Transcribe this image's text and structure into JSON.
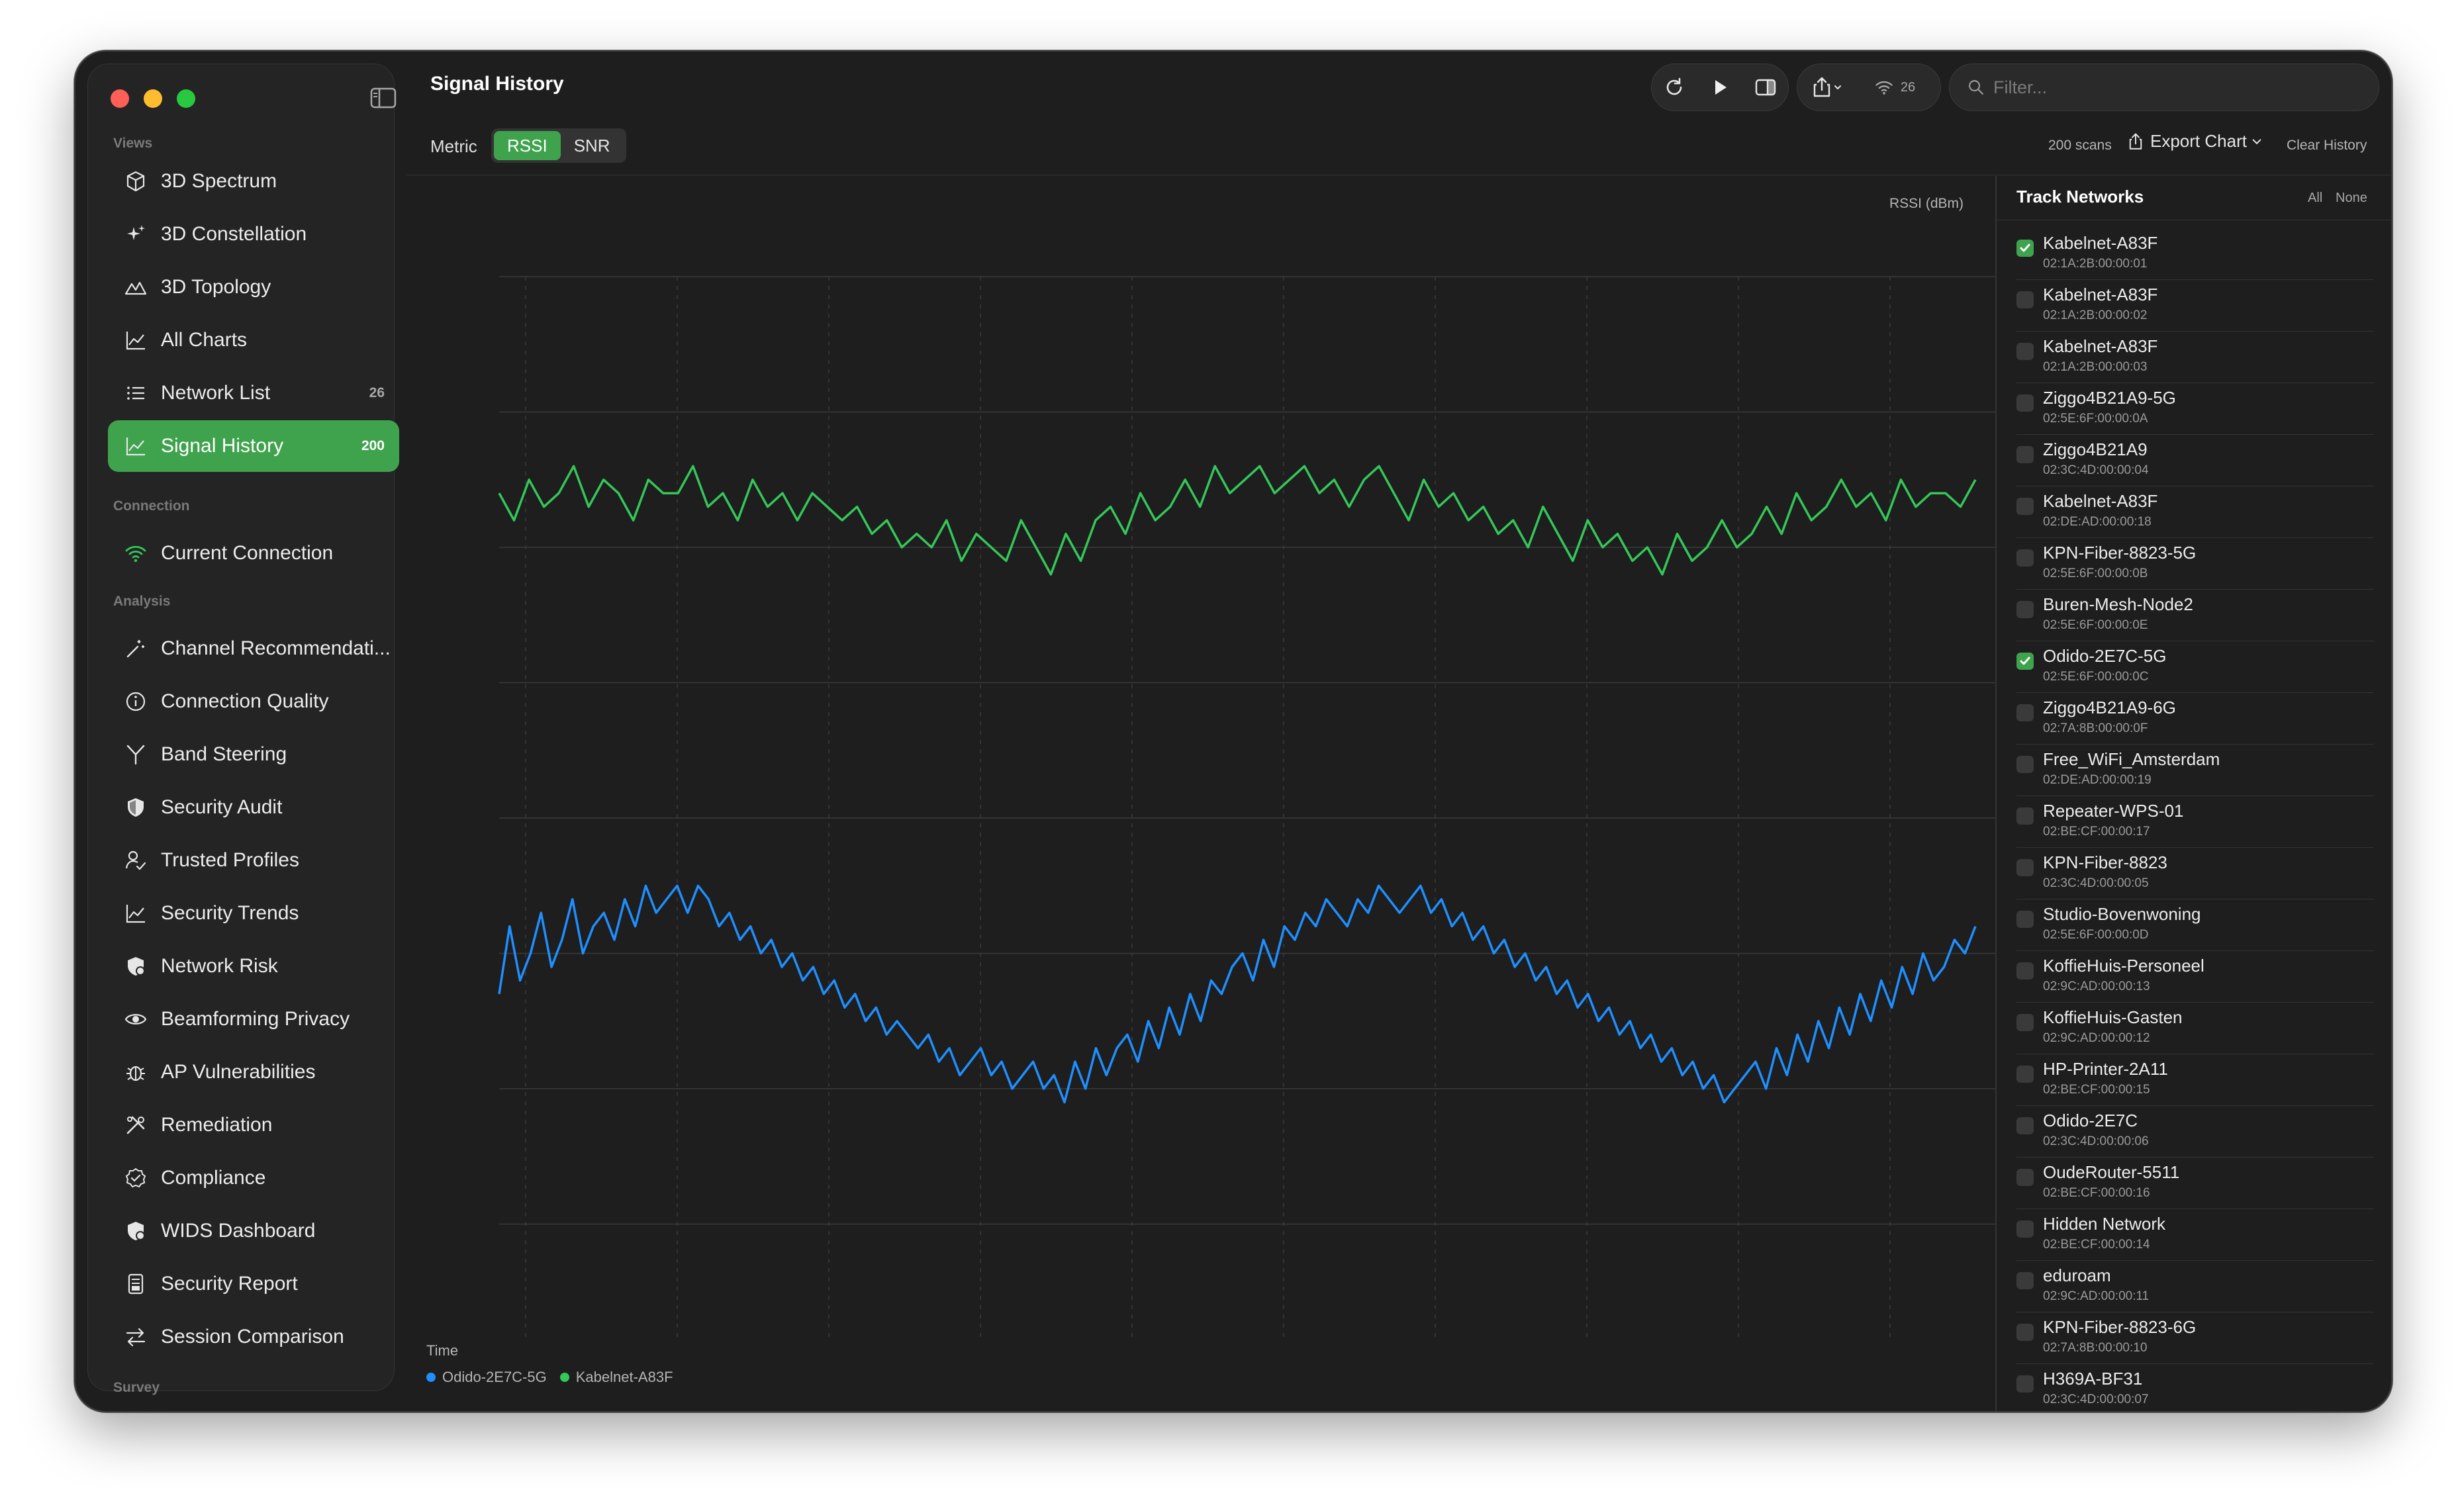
{
  "window": {
    "title": "Signal History"
  },
  "sidebar": {
    "sections": [
      {
        "label": "Views",
        "items": [
          {
            "label": "3D Spectrum",
            "icon": "cube-icon"
          },
          {
            "label": "3D Constellation",
            "icon": "sparkles-icon"
          },
          {
            "label": "3D Topology",
            "icon": "mountains-icon"
          },
          {
            "label": "All Charts",
            "icon": "line-chart-icon"
          },
          {
            "label": "Network List",
            "icon": "list-icon",
            "count": "26"
          },
          {
            "label": "Signal History",
            "icon": "line-chart-icon",
            "count": "200",
            "active": true
          }
        ]
      },
      {
        "label": "Connection",
        "items": [
          {
            "label": "Current Connection",
            "icon": "wifi-icon"
          }
        ]
      },
      {
        "label": "Analysis",
        "items": [
          {
            "label": "Channel Recommendati...",
            "icon": "wand-icon"
          },
          {
            "label": "Connection Quality",
            "icon": "info-circle-icon"
          },
          {
            "label": "Band Steering",
            "icon": "fork-icon"
          },
          {
            "label": "Security Audit",
            "icon": "shield-icon"
          },
          {
            "label": "Trusted Profiles",
            "icon": "person-check-icon"
          },
          {
            "label": "Security Trends",
            "icon": "line-chart-icon"
          },
          {
            "label": "Network Risk",
            "icon": "shield-alert-icon"
          },
          {
            "label": "Beamforming Privacy",
            "icon": "eye-icon"
          },
          {
            "label": "AP Vulnerabilities",
            "icon": "bug-icon"
          },
          {
            "label": "Remediation",
            "icon": "tools-icon"
          },
          {
            "label": "Compliance",
            "icon": "checkmark-seal-icon"
          },
          {
            "label": "WIDS Dashboard",
            "icon": "shield-alert-icon"
          },
          {
            "label": "Security Report",
            "icon": "document-icon"
          },
          {
            "label": "Session Comparison",
            "icon": "arrows-swap-icon"
          }
        ]
      },
      {
        "label": "Survey",
        "items": []
      }
    ]
  },
  "toolbar": {
    "wifi_count": "26",
    "search_placeholder": "Filter..."
  },
  "controls": {
    "metric_label": "Metric",
    "metric_options": [
      "RSSI",
      "SNR"
    ],
    "metric_selected": "RSSI",
    "scans": "200 scans",
    "export_label": "Export Chart",
    "clear_label": "Clear History"
  },
  "chart_data": {
    "type": "line",
    "ylabel": "RSSI (dBm)",
    "xlabel": "Time",
    "ylim": [
      -100,
      -20
    ],
    "yticks": [
      -20,
      -30,
      -40,
      -50,
      -60,
      -70,
      -80,
      -90,
      -100
    ],
    "xticks": [
      "17:54:00",
      "17:55:00",
      "17:56:00",
      "17:57:00",
      "17:58:00",
      "17:59:00",
      "18:00:00",
      "18:01:00",
      "18:02:00",
      "18:03:..."
    ],
    "grid": true,
    "series": [
      {
        "name": "Odido-2E7C-5G",
        "color": "#1f8fff",
        "values": [
          -73,
          -68,
          -72,
          -70,
          -67,
          -71,
          -69,
          -66,
          -70,
          -68,
          -67,
          -69,
          -66,
          -68,
          -65,
          -67,
          -66,
          -65,
          -67,
          -65,
          -66,
          -68,
          -67,
          -69,
          -68,
          -70,
          -69,
          -71,
          -70,
          -72,
          -71,
          -73,
          -72,
          -74,
          -73,
          -75,
          -74,
          -76,
          -75,
          -76,
          -77,
          -76,
          -78,
          -77,
          -79,
          -78,
          -77,
          -79,
          -78,
          -80,
          -79,
          -78,
          -80,
          -79,
          -81,
          -78,
          -80,
          -77,
          -79,
          -77,
          -76,
          -78,
          -75,
          -77,
          -74,
          -76,
          -73,
          -75,
          -72,
          -73,
          -71,
          -70,
          -72,
          -69,
          -71,
          -68,
          -69,
          -67,
          -68,
          -66,
          -67,
          -68,
          -66,
          -67,
          -65,
          -66,
          -67,
          -66,
          -65,
          -67,
          -66,
          -68,
          -67,
          -69,
          -68,
          -70,
          -69,
          -71,
          -70,
          -72,
          -71,
          -73,
          -72,
          -74,
          -73,
          -75,
          -74,
          -76,
          -75,
          -77,
          -76,
          -78,
          -77,
          -79,
          -78,
          -80,
          -79,
          -81,
          -80,
          -79,
          -78,
          -80,
          -77,
          -79,
          -76,
          -78,
          -75,
          -77,
          -74,
          -76,
          -73,
          -75,
          -72,
          -74,
          -71,
          -73,
          -70,
          -72,
          -71,
          -69,
          -70,
          -68
        ]
      },
      {
        "name": "Kabelnet-A83F",
        "color": "#34c759",
        "values": [
          -36,
          -38,
          -35,
          -37,
          -36,
          -34,
          -37,
          -35,
          -36,
          -38,
          -35,
          -36,
          -36,
          -34,
          -37,
          -36,
          -38,
          -35,
          -37,
          -36,
          -38,
          -36,
          -37,
          -38,
          -37,
          -39,
          -38,
          -40,
          -39,
          -40,
          -38,
          -41,
          -39,
          -40,
          -41,
          -38,
          -40,
          -42,
          -39,
          -41,
          -38,
          -37,
          -39,
          -36,
          -38,
          -37,
          -35,
          -37,
          -34,
          -36,
          -35,
          -34,
          -36,
          -35,
          -34,
          -36,
          -35,
          -37,
          -35,
          -34,
          -36,
          -38,
          -35,
          -37,
          -36,
          -38,
          -37,
          -39,
          -38,
          -40,
          -37,
          -39,
          -41,
          -38,
          -40,
          -39,
          -41,
          -40,
          -42,
          -39,
          -41,
          -40,
          -38,
          -40,
          -39,
          -37,
          -39,
          -36,
          -38,
          -37,
          -35,
          -37,
          -36,
          -38,
          -35,
          -37,
          -36,
          -36,
          -37,
          -35
        ]
      }
    ]
  },
  "track_networks": {
    "title": "Track Networks",
    "all_label": "All",
    "none_label": "None",
    "items": [
      {
        "name": "Kabelnet-A83F",
        "mac": "02:1A:2B:00:00:01",
        "checked": true
      },
      {
        "name": "Kabelnet-A83F",
        "mac": "02:1A:2B:00:00:02",
        "checked": false
      },
      {
        "name": "Kabelnet-A83F",
        "mac": "02:1A:2B:00:00:03",
        "checked": false
      },
      {
        "name": "Ziggo4B21A9-5G",
        "mac": "02:5E:6F:00:00:0A",
        "checked": false
      },
      {
        "name": "Ziggo4B21A9",
        "mac": "02:3C:4D:00:00:04",
        "checked": false
      },
      {
        "name": "Kabelnet-A83F",
        "mac": "02:DE:AD:00:00:18",
        "checked": false
      },
      {
        "name": "KPN-Fiber-8823-5G",
        "mac": "02:5E:6F:00:00:0B",
        "checked": false
      },
      {
        "name": "Buren-Mesh-Node2",
        "mac": "02:5E:6F:00:00:0E",
        "checked": false
      },
      {
        "name": "Odido-2E7C-5G",
        "mac": "02:5E:6F:00:00:0C",
        "checked": true
      },
      {
        "name": "Ziggo4B21A9-6G",
        "mac": "02:7A:8B:00:00:0F",
        "checked": false
      },
      {
        "name": "Free_WiFi_Amsterdam",
        "mac": "02:DE:AD:00:00:19",
        "checked": false
      },
      {
        "name": "Repeater-WPS-01",
        "mac": "02:BE:CF:00:00:17",
        "checked": false
      },
      {
        "name": "KPN-Fiber-8823",
        "mac": "02:3C:4D:00:00:05",
        "checked": false
      },
      {
        "name": "Studio-Bovenwoning",
        "mac": "02:5E:6F:00:00:0D",
        "checked": false
      },
      {
        "name": "KoffieHuis-Personeel",
        "mac": "02:9C:AD:00:00:13",
        "checked": false
      },
      {
        "name": "KoffieHuis-Gasten",
        "mac": "02:9C:AD:00:00:12",
        "checked": false
      },
      {
        "name": "HP-Printer-2A11",
        "mac": "02:BE:CF:00:00:15",
        "checked": false
      },
      {
        "name": "Odido-2E7C",
        "mac": "02:3C:4D:00:00:06",
        "checked": false
      },
      {
        "name": "OudeRouter-5511",
        "mac": "02:BE:CF:00:00:16",
        "checked": false
      },
      {
        "name": "Hidden Network",
        "mac": "02:BE:CF:00:00:14",
        "checked": false
      },
      {
        "name": "eduroam",
        "mac": "02:9C:AD:00:00:11",
        "checked": false
      },
      {
        "name": "KPN-Fiber-8823-6G",
        "mac": "02:7A:8B:00:00:10",
        "checked": false
      },
      {
        "name": "H369A-BF31",
        "mac": "02:3C:4D:00:00:07",
        "checked": false
      }
    ]
  }
}
